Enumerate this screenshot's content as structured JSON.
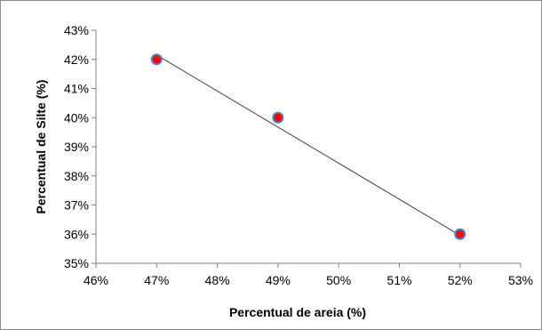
{
  "chart_data": {
    "type": "scatter",
    "title": "",
    "xlabel": "Percentual de areia (%)",
    "ylabel": "Percentual de Silte (%)",
    "xlim": [
      46,
      53
    ],
    "ylim": [
      35,
      43
    ],
    "x_ticks": [
      "46%",
      "47%",
      "48%",
      "49%",
      "50%",
      "51%",
      "52%",
      "53%"
    ],
    "y_ticks": [
      "35%",
      "36%",
      "37%",
      "38%",
      "39%",
      "40%",
      "41%",
      "42%",
      "43%"
    ],
    "grid": false,
    "legend": "none",
    "series": [
      {
        "x": [
          47,
          49,
          52
        ],
        "y": [
          42,
          40,
          36
        ],
        "marker_color": "#ff0000",
        "marker_edge": "#4f81bd"
      }
    ],
    "trendline": {
      "x": [
        47,
        52
      ],
      "y": [
        42.15,
        35.96
      ],
      "color": "#404040"
    }
  }
}
